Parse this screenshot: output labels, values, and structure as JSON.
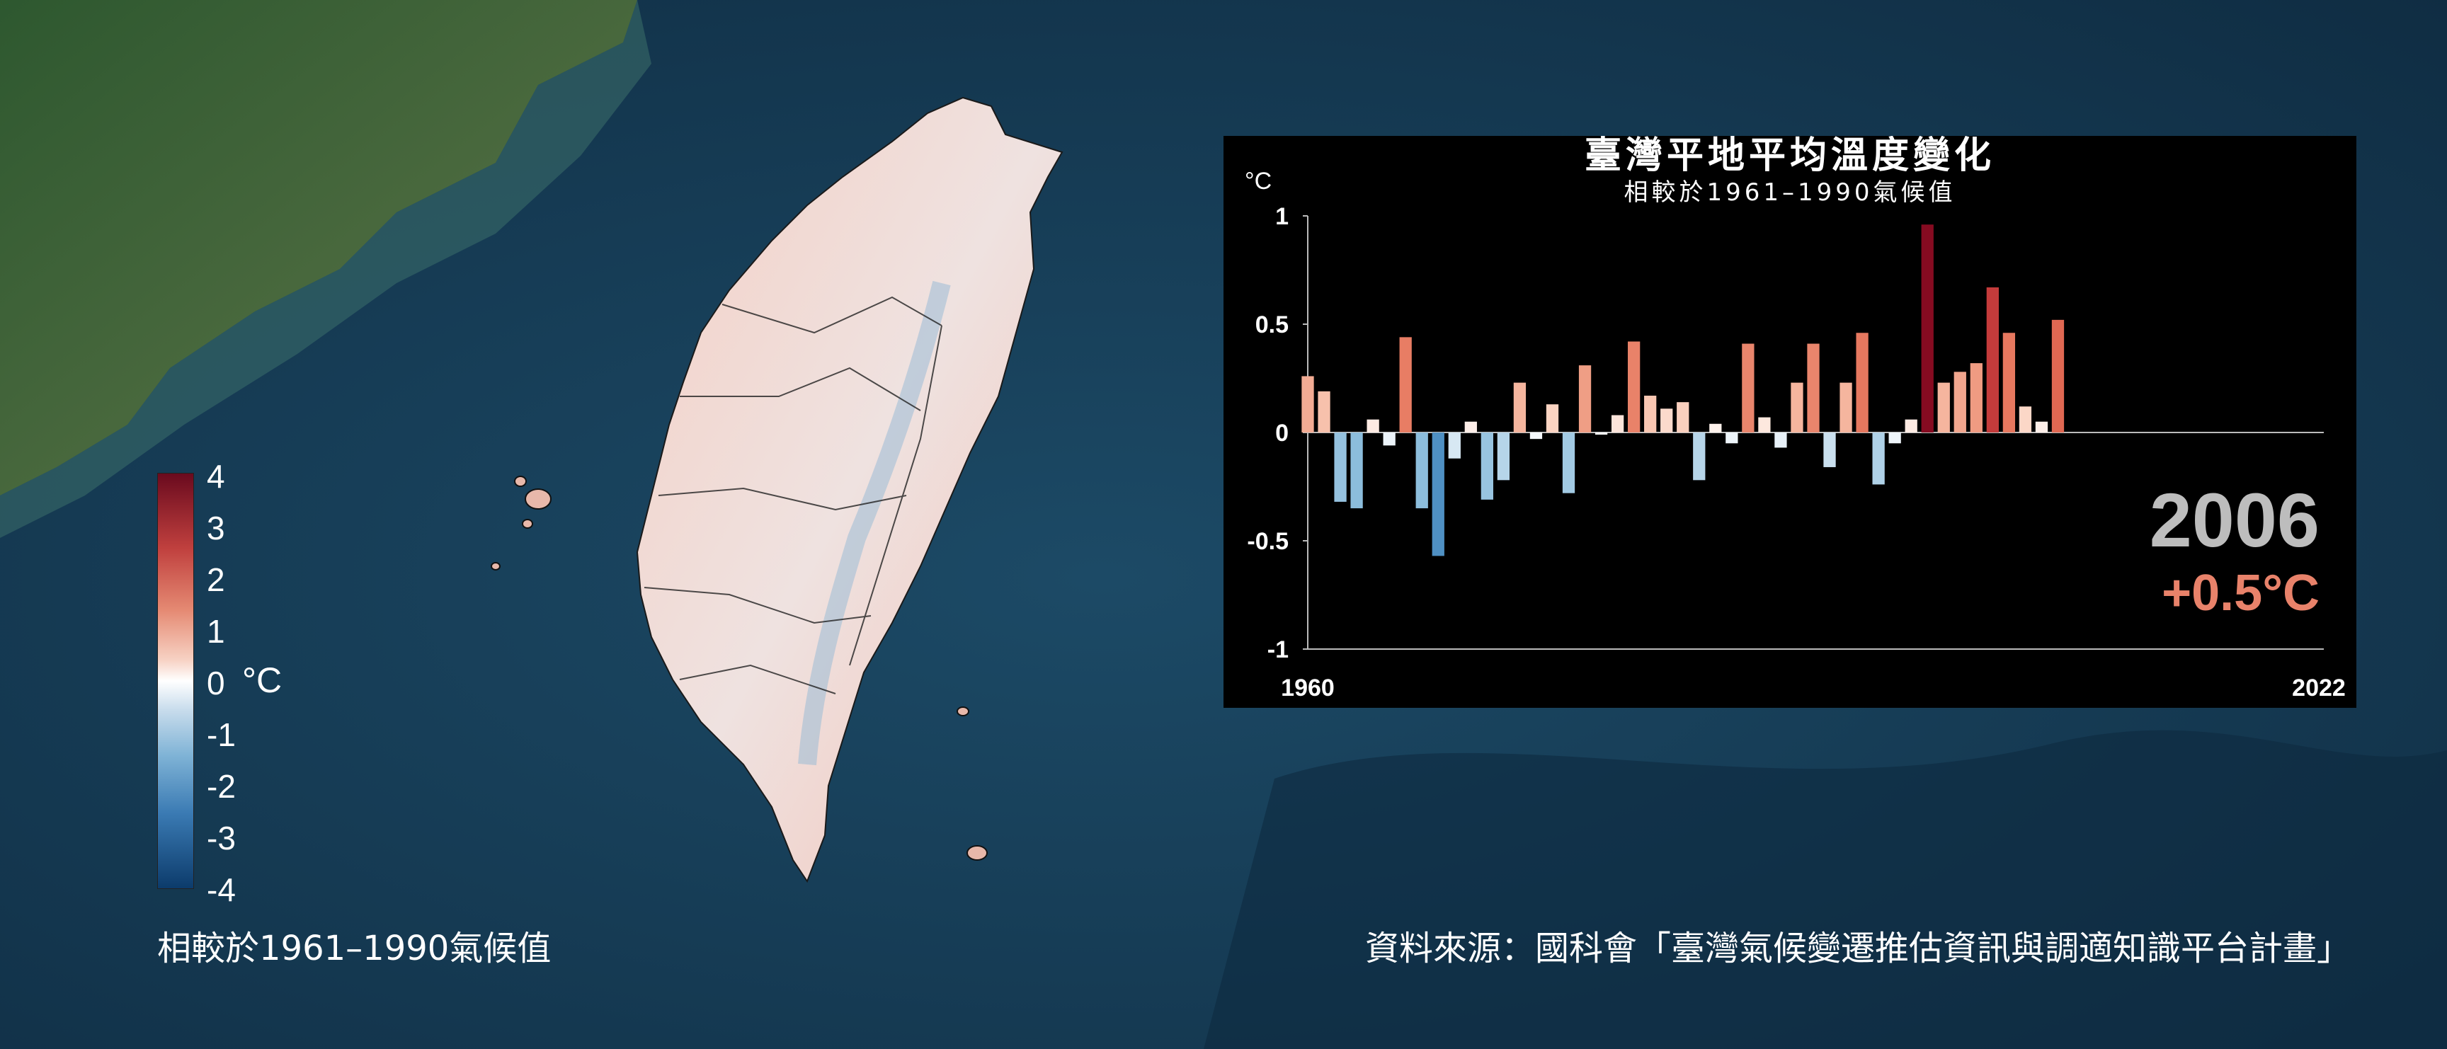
{
  "legend": {
    "ticks": [
      "4",
      "3",
      "2",
      "1",
      "0",
      "-1",
      "-2",
      "-3",
      "-4"
    ],
    "unit": "°C",
    "caption": "相較於1961–1990氣候值"
  },
  "source": "資料來源：國科會「臺灣氣候變遷推估資訊與調適知識平台計畫」",
  "readout": {
    "year": "2006",
    "anomaly": "+0.5°C",
    "year_color": "#bdbdbd",
    "anomaly_color": "#e8826a"
  },
  "colors": {
    "ocean": "#163a55",
    "land": "#3d6a3a",
    "taiwan_warm": "#f0c8bc",
    "panel": "#000000"
  },
  "chart_data": {
    "type": "bar",
    "title": "臺灣平地平均溫度變化",
    "subtitle": "相較於1961–1990氣候值",
    "ylabel": "°C",
    "x_start_label": "1960",
    "x_end_label": "2022",
    "xlim": [
      1960,
      2022
    ],
    "ylim": [
      -1,
      1
    ],
    "yticks": [
      "1",
      "0.5",
      "0",
      "-0.5",
      "-1"
    ],
    "ytick_values": [
      1,
      0.5,
      0,
      -0.5,
      -1
    ],
    "years": [
      1960,
      1961,
      1962,
      1963,
      1964,
      1965,
      1966,
      1967,
      1968,
      1969,
      1970,
      1971,
      1972,
      1973,
      1974,
      1975,
      1976,
      1977,
      1978,
      1979,
      1980,
      1981,
      1982,
      1983,
      1984,
      1985,
      1986,
      1987,
      1988,
      1989,
      1990,
      1991,
      1992,
      1993,
      1994,
      1995,
      1996,
      1997,
      1998,
      1999,
      2000,
      2001,
      2002,
      2003,
      2004,
      2005,
      2006
    ],
    "values": [
      0.26,
      0.19,
      -0.32,
      -0.35,
      0.06,
      -0.06,
      0.44,
      -0.35,
      -0.57,
      -0.12,
      0.05,
      -0.31,
      -0.22,
      0.23,
      -0.03,
      0.13,
      -0.28,
      0.31,
      -0.01,
      0.08,
      0.42,
      0.17,
      0.11,
      0.14,
      -0.22,
      0.04,
      -0.05,
      0.41,
      0.07,
      -0.07,
      0.23,
      0.41,
      -0.16,
      0.23,
      0.46,
      -0.24,
      -0.05,
      0.06,
      0.96,
      0.23,
      0.28,
      0.32,
      0.67,
      0.46,
      0.12,
      0.05,
      0.52
    ]
  }
}
